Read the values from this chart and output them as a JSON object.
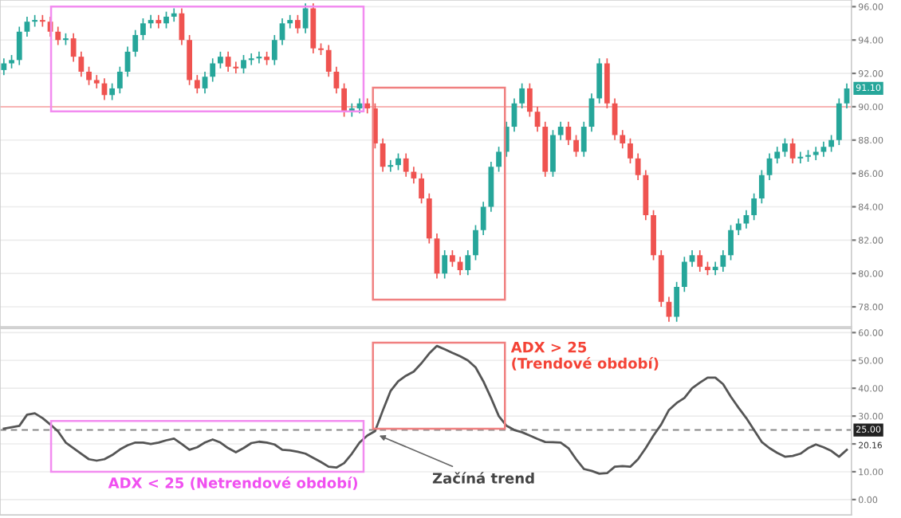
{
  "chart_data": [
    {
      "type": "candlestick",
      "categories": [
        null,
        null,
        null,
        null,
        null,
        null,
        null,
        null,
        null,
        null,
        null,
        null,
        null,
        null,
        null,
        null,
        null,
        null,
        null,
        null,
        null,
        null,
        null,
        null,
        null,
        null,
        null,
        null,
        null,
        null,
        null,
        null,
        null,
        null,
        null,
        null,
        null,
        null,
        null,
        null,
        null,
        null,
        null,
        null,
        null,
        null,
        null,
        null,
        null,
        null,
        null,
        null,
        null,
        null,
        null,
        null,
        null,
        null,
        null,
        null,
        null,
        null,
        null,
        null,
        null,
        null,
        null,
        null,
        null,
        null,
        null,
        null,
        null,
        null,
        null,
        null,
        null,
        null,
        null,
        null,
        null,
        null,
        null,
        null,
        null,
        null,
        null,
        null,
        null,
        null,
        null,
        null,
        null,
        null,
        null,
        null,
        null,
        null,
        null,
        null,
        null,
        null,
        null,
        null,
        null,
        null,
        null,
        null,
        null,
        null
      ],
      "ohlc": [
        [
          92.2,
          92.9,
          91.9,
          92.6
        ],
        [
          92.6,
          93.1,
          92.3,
          92.8
        ],
        [
          92.8,
          94.8,
          92.5,
          94.5
        ],
        [
          94.5,
          95.4,
          94.2,
          95.1
        ],
        [
          95.1,
          95.5,
          94.8,
          95.2
        ],
        [
          95.2,
          95.5,
          94.8,
          95.1
        ],
        [
          95.1,
          95.4,
          94.2,
          94.5
        ],
        [
          94.5,
          94.8,
          93.7,
          94.0
        ],
        [
          94.0,
          94.4,
          93.7,
          94.1
        ],
        [
          94.1,
          94.4,
          92.7,
          93.0
        ],
        [
          93.0,
          93.3,
          91.8,
          92.1
        ],
        [
          92.1,
          92.4,
          91.3,
          91.6
        ],
        [
          91.6,
          91.9,
          91.1,
          91.4
        ],
        [
          91.4,
          91.7,
          90.4,
          90.7
        ],
        [
          90.7,
          91.4,
          90.4,
          91.1
        ],
        [
          91.1,
          92.4,
          90.8,
          92.1
        ],
        [
          92.1,
          93.6,
          91.8,
          93.3
        ],
        [
          93.3,
          94.6,
          93.0,
          94.3
        ],
        [
          94.3,
          95.3,
          94.0,
          95.0
        ],
        [
          95.0,
          95.5,
          94.7,
          95.2
        ],
        [
          95.2,
          95.5,
          94.7,
          95.0
        ],
        [
          95.0,
          95.7,
          94.7,
          95.4
        ],
        [
          95.4,
          95.9,
          95.1,
          95.6
        ],
        [
          95.6,
          95.9,
          93.7,
          94.0
        ],
        [
          94.0,
          94.3,
          91.3,
          91.6
        ],
        [
          91.6,
          91.9,
          90.8,
          91.1
        ],
        [
          91.1,
          92.1,
          90.8,
          91.8
        ],
        [
          91.8,
          92.9,
          91.5,
          92.6
        ],
        [
          92.6,
          93.3,
          92.3,
          93.0
        ],
        [
          93.0,
          93.3,
          92.1,
          92.4
        ],
        [
          92.4,
          92.7,
          92.0,
          92.3
        ],
        [
          92.3,
          93.1,
          92.0,
          92.8
        ],
        [
          92.8,
          93.2,
          92.5,
          92.9
        ],
        [
          92.9,
          93.3,
          92.6,
          93.0
        ],
        [
          93.0,
          93.3,
          92.5,
          92.8
        ],
        [
          92.8,
          94.3,
          92.5,
          94.0
        ],
        [
          94.0,
          95.3,
          93.7,
          95.0
        ],
        [
          95.0,
          95.5,
          94.7,
          95.2
        ],
        [
          95.2,
          95.5,
          94.4,
          94.7
        ],
        [
          94.7,
          96.2,
          94.4,
          95.9
        ],
        [
          95.9,
          96.2,
          93.2,
          93.5
        ],
        [
          93.5,
          93.8,
          93.1,
          93.4
        ],
        [
          93.4,
          93.7,
          91.8,
          92.1
        ],
        [
          92.1,
          92.4,
          90.8,
          91.1
        ],
        [
          91.1,
          91.4,
          89.4,
          89.7
        ],
        [
          89.7,
          90.2,
          89.4,
          89.9
        ],
        [
          89.9,
          90.5,
          89.6,
          90.2
        ],
        [
          90.2,
          90.5,
          89.6,
          89.9
        ],
        [
          89.9,
          90.2,
          87.5,
          87.8
        ],
        [
          87.8,
          88.1,
          86.1,
          86.4
        ],
        [
          86.4,
          86.8,
          86.1,
          86.5
        ],
        [
          86.5,
          87.2,
          86.2,
          86.9
        ],
        [
          86.9,
          87.2,
          85.8,
          86.1
        ],
        [
          86.1,
          86.4,
          85.4,
          85.7
        ],
        [
          85.7,
          86.0,
          84.2,
          84.5
        ],
        [
          84.5,
          84.8,
          81.8,
          82.1
        ],
        [
          82.1,
          82.4,
          79.7,
          80.0
        ],
        [
          80.0,
          81.4,
          79.7,
          81.1
        ],
        [
          81.1,
          81.4,
          80.4,
          80.7
        ],
        [
          80.7,
          81.0,
          79.9,
          80.2
        ],
        [
          80.2,
          81.4,
          79.9,
          81.1
        ],
        [
          81.1,
          82.9,
          80.8,
          82.6
        ],
        [
          82.6,
          84.3,
          82.3,
          84.0
        ],
        [
          84.0,
          86.7,
          83.7,
          86.4
        ],
        [
          86.4,
          87.6,
          86.1,
          87.3
        ],
        [
          87.3,
          89.1,
          87.0,
          88.8
        ],
        [
          88.8,
          90.5,
          88.5,
          90.2
        ],
        [
          90.2,
          91.4,
          89.9,
          91.1
        ],
        [
          91.1,
          91.4,
          89.4,
          89.7
        ],
        [
          89.7,
          90.0,
          88.5,
          88.8
        ],
        [
          88.8,
          89.1,
          85.8,
          86.1
        ],
        [
          86.1,
          88.6,
          85.8,
          88.3
        ],
        [
          88.3,
          89.1,
          88.0,
          88.8
        ],
        [
          88.8,
          89.1,
          87.7,
          88.0
        ],
        [
          88.0,
          88.3,
          87.0,
          87.3
        ],
        [
          87.3,
          89.1,
          87.0,
          88.8
        ],
        [
          88.8,
          90.8,
          88.5,
          90.5
        ],
        [
          90.5,
          92.9,
          90.2,
          92.6
        ],
        [
          92.6,
          92.9,
          89.9,
          90.2
        ],
        [
          90.2,
          90.5,
          88.0,
          88.3
        ],
        [
          88.3,
          88.6,
          87.5,
          87.8
        ],
        [
          87.8,
          88.1,
          86.6,
          86.9
        ],
        [
          86.9,
          87.2,
          85.6,
          85.9
        ],
        [
          85.9,
          86.2,
          83.2,
          83.5
        ],
        [
          83.5,
          83.8,
          80.8,
          81.1
        ],
        [
          81.1,
          81.4,
          78.0,
          78.3
        ],
        [
          78.3,
          78.6,
          77.1,
          77.4
        ],
        [
          77.4,
          79.5,
          77.1,
          79.2
        ],
        [
          79.2,
          81.0,
          78.9,
          80.7
        ],
        [
          80.7,
          81.4,
          80.4,
          81.1
        ],
        [
          81.1,
          81.4,
          80.1,
          80.4
        ],
        [
          80.4,
          80.7,
          79.9,
          80.2
        ],
        [
          80.2,
          80.7,
          79.9,
          80.4
        ],
        [
          80.4,
          81.4,
          80.1,
          81.1
        ],
        [
          81.1,
          82.9,
          80.8,
          82.6
        ],
        [
          82.6,
          83.3,
          82.3,
          83.0
        ],
        [
          83.0,
          83.8,
          82.7,
          83.5
        ],
        [
          83.5,
          84.8,
          83.2,
          84.5
        ],
        [
          84.5,
          86.2,
          84.2,
          85.9
        ],
        [
          85.9,
          87.2,
          85.6,
          86.9
        ],
        [
          86.9,
          87.6,
          86.6,
          87.3
        ],
        [
          87.3,
          88.1,
          87.0,
          87.8
        ],
        [
          87.8,
          88.1,
          86.6,
          86.9
        ],
        [
          86.9,
          87.3,
          86.6,
          87.0
        ],
        [
          87.0,
          87.4,
          86.7,
          87.1
        ],
        [
          87.1,
          87.6,
          86.8,
          87.3
        ],
        [
          87.3,
          87.9,
          87.0,
          87.6
        ],
        [
          87.6,
          88.3,
          87.3,
          88.0
        ],
        [
          88.0,
          90.5,
          87.7,
          90.2
        ],
        [
          90.2,
          91.4,
          89.9,
          91.1
        ]
      ],
      "ylim": [
        76.8,
        96.4
      ],
      "yticks": [
        {
          "value": 78,
          "label": "78.00"
        },
        {
          "value": 80,
          "label": "80.00"
        },
        {
          "value": 82,
          "label": "82.00"
        },
        {
          "value": 84,
          "label": "84.00"
        },
        {
          "value": 86,
          "label": "86.00"
        },
        {
          "value": 88,
          "label": "88.00"
        },
        {
          "value": 90,
          "label": "90.00"
        },
        {
          "value": 92,
          "label": "92.00"
        },
        {
          "value": 94,
          "label": "94.00"
        },
        {
          "value": 96,
          "label": "96.00"
        }
      ],
      "ref_lines": [
        {
          "axis": "y",
          "value": 90,
          "color": "#f7b4b4",
          "line_style": "solid"
        }
      ],
      "annotations": [
        {
          "text": "91.10",
          "y": 91.1
        }
      ],
      "grid": "y",
      "tick_labels": "y"
    },
    {
      "type": "line",
      "categories": [
        null,
        null,
        null,
        null,
        null,
        null,
        null,
        null,
        null,
        null,
        null,
        null,
        null,
        null,
        null,
        null,
        null,
        null,
        null,
        null,
        null,
        null,
        null,
        null,
        null,
        null,
        null,
        null,
        null,
        null,
        null,
        null,
        null,
        null,
        null,
        null,
        null,
        null,
        null,
        null,
        null,
        null,
        null,
        null,
        null,
        null,
        null,
        null,
        null,
        null,
        null,
        null,
        null,
        null,
        null,
        null,
        null,
        null,
        null,
        null,
        null,
        null,
        null,
        null,
        null,
        null,
        null,
        null,
        null,
        null,
        null,
        null,
        null,
        null,
        null,
        null,
        null,
        null,
        null,
        null,
        null,
        null,
        null,
        null,
        null,
        null,
        null,
        null,
        null,
        null,
        null,
        null,
        null,
        null,
        null,
        null,
        null,
        null,
        null,
        null,
        null,
        null,
        null,
        null,
        null,
        null,
        null,
        null,
        null,
        null
      ],
      "series": [
        {
          "color": "#555555",
          "values": [
            25.5,
            26.0,
            26.5,
            30.5,
            31.0,
            29.3,
            27.0,
            24.5,
            20.5,
            18.5,
            16.5,
            14.5,
            14.0,
            14.5,
            16.0,
            18.0,
            19.5,
            20.5,
            20.5,
            20.0,
            20.5,
            21.3,
            21.9,
            20.0,
            17.9,
            18.8,
            20.5,
            21.6,
            20.5,
            18.5,
            17.0,
            18.5,
            20.3,
            20.8,
            20.5,
            19.8,
            17.9,
            17.7,
            17.2,
            16.5,
            15.0,
            13.5,
            11.8,
            11.5,
            13.1,
            16.5,
            20.5,
            23.0,
            24.6,
            32.0,
            39.0,
            42.5,
            44.5,
            46.0,
            49.0,
            52.5,
            55.2,
            54.0,
            52.7,
            51.5,
            50.0,
            47.5,
            42.5,
            36.5,
            30.0,
            26.5,
            25.0,
            24.2,
            23.0,
            21.8,
            20.7,
            20.6,
            20.5,
            18.5,
            14.5,
            11.0,
            10.3,
            9.3,
            9.5,
            11.8,
            12.0,
            11.8,
            14.5,
            18.5,
            23.0,
            27.0,
            32.2,
            34.7,
            36.5,
            40.0,
            42.0,
            43.8,
            43.8,
            41.5,
            37.0,
            33.0,
            29.3,
            25.0,
            20.7,
            18.5,
            16.8,
            15.4,
            15.7,
            16.5,
            18.5,
            19.8,
            18.8,
            17.5,
            15.4,
            17.9
          ]
        }
      ],
      "ylim": [
        -5.5,
        61.5
      ],
      "yticks": [
        {
          "value": 0,
          "label": "0.00"
        },
        {
          "value": 10,
          "label": "10.00"
        },
        {
          "value": 20,
          "label": null
        },
        {
          "value": 30,
          "label": "30.00"
        },
        {
          "value": 40,
          "label": "40.00"
        },
        {
          "value": 50,
          "label": "50.00"
        },
        {
          "value": 60,
          "label": "60.00"
        }
      ],
      "ref_lines": [
        {
          "axis": "y",
          "value": 25,
          "label": "25.00",
          "color": "#888888",
          "line_style": "dashed"
        }
      ],
      "annotations": [
        "ADX < 25 (Netrendové období)",
        "ADX > 25\n(Trendové období)",
        "Začíná trend",
        "20.16"
      ],
      "grid": "y",
      "tick_labels": "y",
      "line_style": "solid",
      "marker": "none"
    }
  ]
}
